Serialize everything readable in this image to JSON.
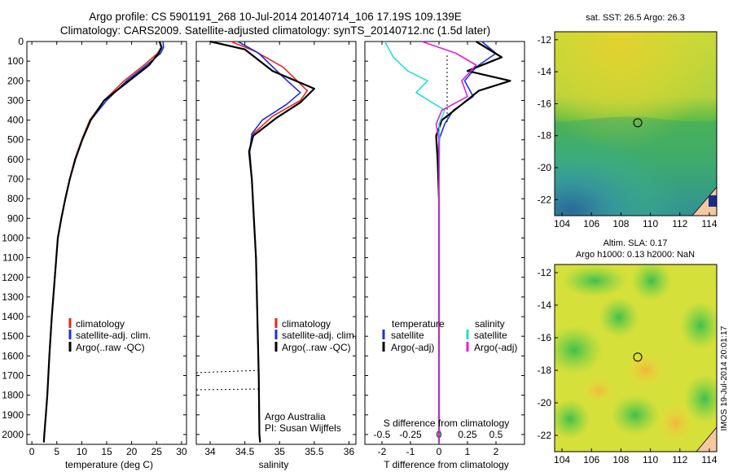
{
  "title_line1": "Argo profile: CS 5901191_268 10-Jul-2014 20140714_106 17.19S 109.139E",
  "title_line2": "Climatology: CARS2009. Satellite-adjusted climatology: synTS_20140712.nc (1.5d later)",
  "timestamp": "IMOS 19-Jul-2014 20:01:17",
  "colors": {
    "climatology": "#e8261c",
    "satellite": "#1c2fe0",
    "argo": "#000000",
    "cyan": "#22dde0",
    "magenta": "#e020d8"
  },
  "legend_profile": [
    "climatology",
    "satellite-adj. clim.",
    "Argo(..raw -QC)"
  ],
  "legend_diff": {
    "temperature": "temperature",
    "salinity": "salinity",
    "t_sat": "satellite",
    "t_argo": "Argo(-adj)",
    "s_sat": "satellite",
    "s_argo": "Argo(-adj)"
  },
  "sal_note": [
    "Argo Australia",
    "PI: Susan Wijffels"
  ],
  "chart_data": [
    {
      "type": "line",
      "name": "temperature",
      "xlabel": "temperature (deg C)",
      "xlim": [
        -1,
        31
      ],
      "ylim": [
        2050,
        0
      ],
      "xticks": [
        0,
        5,
        10,
        15,
        20,
        25,
        30
      ],
      "yticks": [
        0,
        100,
        200,
        300,
        400,
        500,
        600,
        700,
        800,
        900,
        1000,
        1100,
        1200,
        1300,
        1400,
        1500,
        1600,
        1700,
        1800,
        1900,
        2000
      ],
      "series": [
        {
          "name": "climatology",
          "color": "#e8261c",
          "x": [
            25.6,
            25.9,
            25.2,
            22.5,
            18.5,
            14.5,
            11.6,
            10.0,
            8.6,
            7.6,
            6.7,
            5.9,
            5.2,
            4.6,
            4.0,
            3.5,
            3.1,
            2.8,
            2.5,
            2.4
          ],
          "y": [
            0,
            30,
            60,
            120,
            200,
            300,
            400,
            500,
            600,
            700,
            800,
            900,
            1000,
            1200,
            1400,
            1600,
            1800,
            1900,
            2000,
            2040
          ]
        },
        {
          "name": "satellite-adj. clim.",
          "color": "#1c2fe0",
          "x": [
            26.3,
            26.4,
            25.8,
            23.0,
            19.0,
            15.0,
            11.8,
            10.1,
            8.7,
            7.6,
            6.7,
            5.9,
            5.2,
            4.6,
            4.0,
            3.5,
            3.1,
            2.8,
            2.5,
            2.4
          ],
          "y": [
            0,
            30,
            60,
            120,
            200,
            300,
            400,
            500,
            600,
            700,
            800,
            900,
            1000,
            1200,
            1400,
            1600,
            1800,
            1900,
            2000,
            2040
          ]
        },
        {
          "name": "Argo(..raw -QC)",
          "color": "#000000",
          "x": [
            25.6,
            26.0,
            25.4,
            23.5,
            19.5,
            14.5,
            11.8,
            10.1,
            8.7,
            7.6,
            6.7,
            5.9,
            5.2,
            4.6,
            4.0,
            3.5,
            3.1,
            2.8,
            2.5,
            2.4
          ],
          "y": [
            0,
            30,
            60,
            120,
            200,
            300,
            400,
            500,
            600,
            700,
            800,
            900,
            1000,
            1200,
            1400,
            1600,
            1800,
            1900,
            2000,
            2040
          ]
        }
      ]
    },
    {
      "type": "line",
      "name": "salinity",
      "xlabel": "salinity",
      "xlim": [
        33.8,
        36.1
      ],
      "ylim": [
        2050,
        0
      ],
      "xticks": [
        34,
        34.5,
        35,
        35.5,
        36
      ],
      "series": [
        {
          "name": "climatology",
          "color": "#e8261c",
          "x": [
            34.3,
            34.65,
            35.05,
            35.4,
            35.3,
            34.9,
            34.62,
            34.57,
            34.6,
            34.63,
            34.66,
            34.68,
            34.7,
            34.71,
            34.72
          ],
          "y": [
            0,
            50,
            130,
            250,
            300,
            380,
            470,
            560,
            700,
            900,
            1100,
            1400,
            1700,
            2000,
            2040
          ]
        },
        {
          "name": "satellite-adj. clim.",
          "color": "#1c2fe0",
          "x": [
            34.4,
            34.7,
            35.05,
            35.3,
            35.1,
            34.75,
            34.6,
            34.57,
            34.6,
            34.63,
            34.66,
            34.68,
            34.7,
            34.71,
            34.72
          ],
          "y": [
            0,
            60,
            180,
            260,
            320,
            400,
            470,
            560,
            700,
            900,
            1100,
            1400,
            1700,
            2000,
            2040
          ]
        },
        {
          "name": "Argo(..raw -QC)",
          "color": "#000000",
          "x": [
            34.0,
            34.5,
            34.9,
            35.5,
            35.3,
            34.95,
            34.62,
            34.56,
            34.6,
            34.63,
            34.66,
            34.68,
            34.7,
            34.71,
            34.72
          ],
          "y": [
            0,
            40,
            150,
            240,
            310,
            390,
            480,
            560,
            700,
            900,
            1100,
            1400,
            1700,
            2000,
            2040
          ]
        }
      ]
    },
    {
      "type": "line",
      "name": "differences",
      "xlabel": "T difference from climatology",
      "xlabel_top": "S difference from climatology",
      "xlim": [
        -2.6,
        3.0
      ],
      "ylim": [
        2050,
        0
      ],
      "xticks": [
        -2,
        -1,
        0,
        1,
        2
      ],
      "xticks_s": [
        -0.5,
        -0.25,
        0,
        0.25,
        0.5
      ],
      "series": [
        {
          "name": "T satellite",
          "color": "#1c2fe0",
          "x": [
            1.5,
            2.0,
            1.3,
            0.9,
            1.2,
            0.5,
            0.2,
            0.0,
            -0.03,
            0.0,
            0.0,
            0.0,
            0.0
          ],
          "y": [
            0,
            60,
            130,
            200,
            280,
            350,
            420,
            500,
            600,
            800,
            1200,
            1800,
            2040
          ]
        },
        {
          "name": "T Argo(-adj)",
          "color": "#000000",
          "x": [
            1.3,
            2.2,
            1.0,
            2.5,
            1.4,
            0.8,
            0.1,
            -0.1,
            -0.05,
            0.0,
            0.0,
            0.0,
            0.0
          ],
          "y": [
            0,
            80,
            150,
            200,
            250,
            320,
            400,
            480,
            600,
            800,
            1200,
            1800,
            2040
          ]
        },
        {
          "name": "S satellite",
          "color": "#22dde0",
          "x": [
            -1.9,
            -1.6,
            -1.1,
            -0.4,
            -0.8,
            0.2,
            0.0,
            0.02,
            0.0,
            0.0,
            0.0
          ],
          "y": [
            0,
            80,
            150,
            200,
            260,
            350,
            420,
            500,
            800,
            1500,
            2040
          ]
        },
        {
          "name": "S Argo(-adj)",
          "color": "#e020d8",
          "x": [
            -0.6,
            0.6,
            1.3,
            0.8,
            1.0,
            0.1,
            -0.1,
            0.0,
            0.0,
            0.0,
            0.0
          ],
          "y": [
            0,
            60,
            120,
            200,
            280,
            350,
            420,
            500,
            800,
            1500,
            2040
          ]
        }
      ]
    },
    {
      "type": "heatmap",
      "name": "sst-map",
      "title": "sat. SST: 26.5 Argo: 26.3",
      "xlim": [
        103.5,
        114.5
      ],
      "ylim": [
        -23,
        -11.5
      ],
      "xticks": [
        104,
        106,
        108,
        110,
        112,
        114
      ],
      "yticks": [
        -12,
        -14,
        -16,
        -18,
        -20,
        -22
      ],
      "argo_point": [
        109.139,
        -17.19
      ]
    },
    {
      "type": "heatmap",
      "name": "sla-map",
      "title_line1": "Altim. SLA: 0.17",
      "title_line2": "Argo h1000: 0.13 h2000: NaN",
      "xlim": [
        103.5,
        114.5
      ],
      "ylim": [
        -23,
        -11.5
      ],
      "xticks": [
        104,
        106,
        108,
        110,
        112,
        114
      ],
      "yticks": [
        -12,
        -14,
        -16,
        -18,
        -20,
        -22
      ],
      "argo_point": [
        109.139,
        -17.19
      ]
    }
  ]
}
